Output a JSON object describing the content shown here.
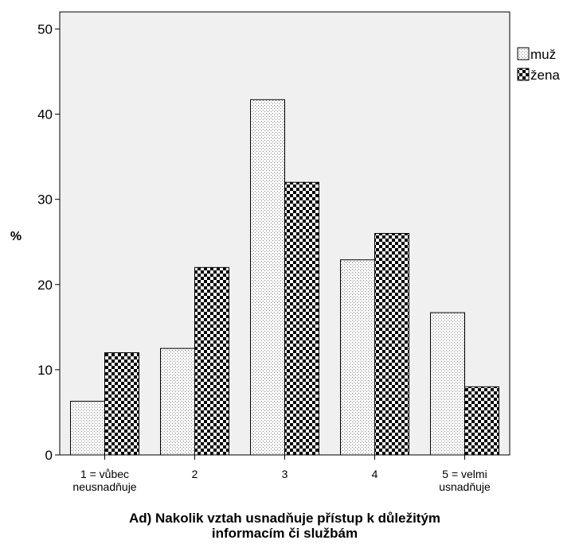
{
  "chart_data": {
    "type": "bar",
    "categories": [
      [
        "1 = vůbec",
        "neusnadňuje"
      ],
      [
        "2"
      ],
      [
        "3"
      ],
      [
        "4"
      ],
      [
        "5 = velmi",
        "usnadňuje"
      ]
    ],
    "series": [
      {
        "name": "muž",
        "values": [
          6.3,
          12.5,
          41.7,
          22.9,
          16.7
        ],
        "pattern": "dotted"
      },
      {
        "name": "žena",
        "values": [
          12.0,
          22.0,
          32.0,
          26.0,
          8.0
        ],
        "pattern": "checkered"
      }
    ],
    "ylabel": "%",
    "xlabel": [
      "Ad) Nakolik vztah usnadňuje přístup k důležitým",
      "informacím či službám"
    ],
    "ylim": [
      0,
      52
    ],
    "yticks": [
      0,
      10,
      20,
      30,
      40,
      50
    ],
    "legend_position": "top-right",
    "colors": {
      "plot_background": "#f0f0f0",
      "bar_edge": "#000000",
      "muz_fill": "#ffffff",
      "zena_dark": "#000000"
    }
  }
}
